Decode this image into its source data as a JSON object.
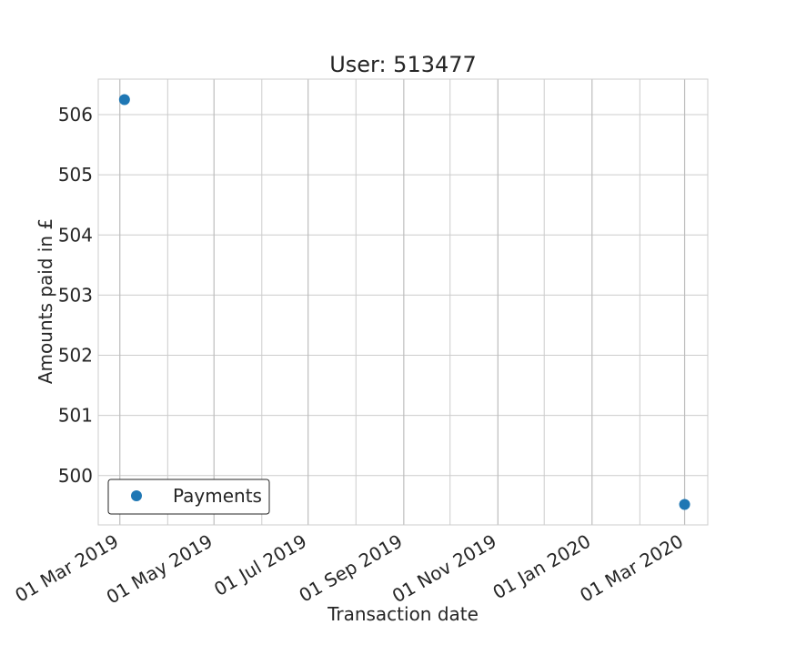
{
  "chart_data": {
    "type": "scatter",
    "title": "User: 513477",
    "xlabel": "Transaction date",
    "ylabel": "Amounts paid in £",
    "series": [
      {
        "name": "Payments",
        "color": "#1f77b4",
        "points": [
          {
            "x": "2019-03-04",
            "y": 506.25
          },
          {
            "x": "2020-03-01",
            "y": 499.52
          }
        ]
      }
    ],
    "x_ticks": [
      {
        "value": "2019-03-01",
        "label": "01 Mar 2019"
      },
      {
        "value": "2019-05-01",
        "label": "01 May 2019"
      },
      {
        "value": "2019-07-01",
        "label": "01 Jul 2019"
      },
      {
        "value": "2019-09-01",
        "label": "01 Sep 2019"
      },
      {
        "value": "2019-11-01",
        "label": "01 Nov 2019"
      },
      {
        "value": "2020-01-01",
        "label": "01 Jan 2020"
      },
      {
        "value": "2020-03-01",
        "label": "01 Mar 2020"
      }
    ],
    "x_minor_ticks": [
      "2019-04-01",
      "2019-06-01",
      "2019-08-01",
      "2019-10-01",
      "2019-12-01",
      "2020-02-01"
    ],
    "y_ticks": [
      500,
      501,
      502,
      503,
      504,
      505,
      506
    ],
    "xlim": [
      "2019-02-15",
      "2020-03-16"
    ],
    "ylim": [
      499.18,
      506.59
    ],
    "grid": true,
    "legend_position": "lower-left"
  }
}
